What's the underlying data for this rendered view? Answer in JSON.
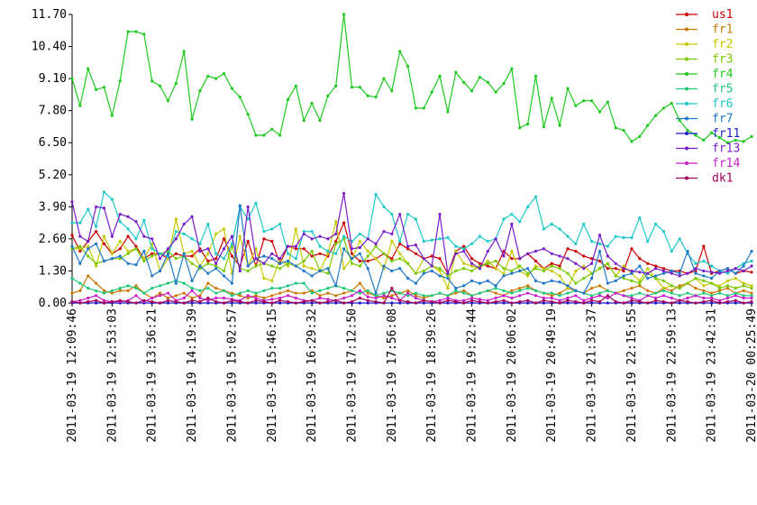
{
  "chart_data": {
    "type": "line",
    "categories": [
      "2011-03-19 12:09:46",
      null,
      null,
      null,
      null,
      "2011-03-19 12:53:03",
      null,
      null,
      null,
      null,
      "2011-03-19 13:36:21",
      null,
      null,
      null,
      null,
      "2011-03-19 14:19:39",
      null,
      null,
      null,
      null,
      "2011-03-19 15:02:57",
      null,
      null,
      null,
      null,
      "2011-03-19 15:46:15",
      null,
      null,
      null,
      null,
      "2011-03-19 16:29:32",
      null,
      null,
      null,
      null,
      "2011-03-19 17:12:50",
      null,
      null,
      null,
      null,
      "2011-03-19 17:56:08",
      null,
      null,
      null,
      null,
      "2011-03-19 18:39:26",
      null,
      null,
      null,
      null,
      "2011-03-19 19:22:44",
      null,
      null,
      null,
      null,
      "2011-03-19 20:06:02",
      null,
      null,
      null,
      null,
      "2011-03-19 20:49:19",
      null,
      null,
      null,
      null,
      "2011-03-19 21:32:37",
      null,
      null,
      null,
      null,
      "2011-03-19 22:15:55",
      null,
      null,
      null,
      null,
      "2011-03-19 22:59:13",
      null,
      null,
      null,
      null,
      "2011-03-19 23:42:31",
      null,
      null,
      null,
      null,
      "2011-03-20 00:25:49"
    ],
    "ylim": [
      0,
      11.7
    ],
    "yticks": [
      {
        "value": 0,
        "label": "0.00"
      },
      {
        "value": 1.3,
        "label": "1.30"
      },
      {
        "value": 2.6,
        "label": "2.60"
      },
      {
        "value": 3.9,
        "label": "3.90"
      },
      {
        "value": 5.2,
        "label": "5.20"
      },
      {
        "value": 6.5,
        "label": "6.50"
      },
      {
        "value": 7.8,
        "label": "7.80"
      },
      {
        "value": 9.1,
        "label": "9.10"
      },
      {
        "value": 10.4,
        "label": "10.40"
      },
      {
        "value": 11.7,
        "label": "11.70"
      }
    ],
    "series": [
      {
        "name": "us1",
        "color": "#cc0000",
        "values": [
          2.75,
          2.1,
          2.5,
          2.9,
          2.4,
          2.0,
          2.2,
          2.7,
          2.3,
          1.8,
          2.0,
          2.0,
          1.8,
          2.0,
          1.9,
          1.9,
          2.2,
          1.7,
          1.8,
          2.6,
          1.9,
          1.5,
          2.5,
          1.5,
          2.6,
          2.5,
          1.6,
          2.3,
          2.2,
          2.2,
          1.9,
          2.0,
          1.9,
          2.5,
          3.25,
          2.0,
          1.7,
          1.7,
          1.8,
          2.0,
          1.8,
          2.4,
          2.2,
          2.0,
          1.8,
          1.9,
          1.8,
          1.2,
          2.1,
          2.3,
          1.8,
          1.6,
          1.5,
          1.4,
          2.1,
          1.8,
          1.8,
          2.0,
          1.7,
          1.4,
          1.6,
          1.5,
          2.2,
          2.1,
          1.9,
          1.8,
          1.7,
          1.4,
          1.4,
          1.3,
          2.2,
          1.8,
          1.6,
          1.5,
          1.4,
          1.3,
          1.3,
          1.2,
          1.3,
          2.3,
          1.2,
          1.3,
          1.4,
          1.2,
          1.3,
          1.25
        ]
      },
      {
        "name": "fr1",
        "color": "#c87800",
        "values": [
          0.4,
          0.5,
          1.1,
          0.8,
          0.5,
          0.4,
          0.5,
          0.5,
          0.7,
          0.4,
          0.2,
          0.4,
          0.2,
          0.3,
          0.4,
          0.2,
          0.3,
          0.8,
          0.6,
          0.5,
          0.4,
          0.3,
          0.2,
          0.3,
          0.2,
          0.3,
          0.4,
          0.5,
          0.4,
          0.4,
          0.5,
          0.3,
          0.4,
          0.3,
          0.4,
          0.5,
          0.8,
          0.4,
          0.3,
          0.2,
          0.3,
          0.4,
          0.5,
          0.3,
          0.2,
          0.3,
          0.4,
          0.3,
          0.4,
          0.5,
          0.3,
          0.4,
          0.5,
          0.4,
          0.3,
          0.5,
          0.6,
          0.7,
          0.5,
          0.4,
          0.3,
          0.4,
          0.6,
          0.5,
          0.4,
          0.6,
          0.7,
          0.5,
          0.4,
          0.5,
          0.6,
          0.7,
          0.5,
          0.4,
          0.6,
          0.5,
          0.7,
          0.8,
          0.6,
          0.5,
          0.4,
          0.5,
          0.6,
          0.4,
          0.5,
          0.4
        ]
      },
      {
        "name": "fr2",
        "color": "#c8c800",
        "values": [
          2.2,
          2.2,
          2.3,
          1.5,
          2.7,
          2.0,
          2.5,
          2.1,
          2.2,
          1.8,
          2.4,
          1.3,
          1.8,
          3.4,
          2.0,
          2.1,
          1.5,
          2.0,
          2.8,
          3.0,
          1.2,
          2.7,
          1.5,
          2.2,
          1.0,
          0.9,
          1.8,
          1.5,
          3.0,
          1.5,
          1.4,
          1.3,
          2.0,
          3.3,
          1.4,
          1.8,
          2.5,
          2.1,
          1.8,
          1.4,
          2.5,
          2.0,
          1.6,
          1.2,
          1.8,
          1.5,
          1.3,
          0.6,
          2.1,
          1.6,
          1.5,
          1.4,
          1.7,
          1.4,
          1.2,
          2.1,
          1.3,
          1.1,
          1.5,
          1.4,
          1.3,
          1.1,
          0.6,
          1.3,
          1.5,
          1.2,
          1.4,
          1.6,
          1.1,
          1.5,
          1.2,
          0.9,
          1.4,
          1.0,
          0.6,
          0.7,
          0.6,
          0.8,
          1.0,
          0.7,
          0.8,
          0.7,
          0.9,
          1.0,
          0.8,
          0.7
        ]
      },
      {
        "name": "fr3",
        "color": "#78c800",
        "values": [
          2.2,
          2.3,
          1.9,
          1.6,
          1.7,
          1.8,
          1.8,
          2.0,
          2.2,
          1.7,
          1.9,
          2.0,
          2.1,
          1.8,
          1.9,
          1.6,
          1.4,
          1.6,
          1.5,
          1.3,
          2.3,
          1.4,
          1.3,
          1.5,
          1.6,
          1.5,
          1.4,
          1.6,
          1.5,
          1.7,
          2.1,
          1.3,
          1.2,
          2.4,
          2.6,
          1.6,
          1.5,
          1.9,
          2.3,
          2.0,
          1.7,
          1.8,
          1.6,
          1.2,
          1.3,
          1.5,
          1.4,
          1.1,
          1.3,
          1.4,
          1.3,
          1.5,
          1.6,
          1.7,
          1.4,
          1.3,
          1.5,
          1.2,
          1.4,
          1.3,
          1.5,
          1.4,
          1.2,
          0.8,
          1.0,
          1.2,
          1.4,
          1.6,
          1.1,
          1.0,
          0.9,
          0.8,
          1.2,
          1.0,
          0.9,
          0.7,
          0.6,
          0.8,
          1.0,
          0.9,
          0.8,
          0.6,
          0.7,
          0.6,
          0.7,
          0.6
        ]
      },
      {
        "name": "fr4",
        "color": "#1ec81e",
        "values": [
          9.1,
          8.0,
          9.5,
          8.65,
          8.75,
          7.6,
          9.0,
          11.0,
          11.0,
          10.9,
          9.0,
          8.8,
          8.2,
          8.9,
          10.2,
          7.45,
          8.6,
          9.2,
          9.1,
          9.3,
          8.7,
          8.35,
          7.65,
          6.8,
          6.8,
          7.05,
          6.8,
          8.25,
          8.8,
          7.4,
          8.1,
          7.4,
          8.4,
          8.8,
          11.7,
          8.75,
          8.75,
          8.4,
          8.35,
          9.1,
          8.6,
          10.2,
          9.6,
          7.9,
          7.9,
          8.55,
          9.2,
          7.75,
          9.35,
          8.95,
          8.6,
          9.15,
          8.95,
          8.55,
          8.9,
          9.5,
          7.1,
          7.25,
          9.2,
          7.15,
          8.3,
          7.2,
          8.7,
          8.0,
          8.2,
          8.2,
          7.75,
          8.15,
          7.1,
          7.0,
          6.55,
          6.75,
          7.2,
          7.6,
          7.9,
          8.1,
          7.4,
          7.0,
          6.8,
          6.6,
          6.9,
          6.7,
          6.5,
          6.6,
          6.55,
          6.75
        ]
      },
      {
        "name": "fr5",
        "color": "#1ec878",
        "values": [
          1.0,
          0.8,
          0.6,
          0.5,
          0.4,
          0.5,
          0.6,
          0.7,
          0.6,
          0.4,
          0.6,
          0.7,
          0.8,
          0.9,
          0.8,
          0.6,
          0.5,
          0.6,
          0.4,
          0.5,
          0.3,
          0.4,
          0.5,
          0.4,
          0.5,
          0.6,
          0.6,
          0.7,
          0.8,
          0.8,
          0.4,
          0.5,
          0.6,
          0.7,
          0.6,
          0.5,
          0.4,
          0.5,
          0.3,
          0.4,
          0.5,
          0.4,
          0.3,
          0.4,
          0.3,
          0.3,
          0.4,
          0.3,
          0.5,
          0.4,
          0.3,
          0.4,
          0.5,
          0.6,
          0.5,
          0.4,
          0.5,
          0.6,
          0.5,
          0.4,
          0.4,
          0.3,
          0.4,
          0.5,
          0.4,
          0.3,
          0.4,
          0.5,
          0.4,
          0.3,
          0.3,
          0.4,
          0.3,
          0.4,
          0.5,
          0.4,
          0.3,
          0.4,
          0.3,
          0.4,
          0.3,
          0.4,
          0.3,
          0.4,
          0.3,
          0.3
        ]
      },
      {
        "name": "fr6",
        "color": "#1ec8c8",
        "values": [
          3.25,
          3.25,
          3.8,
          3.1,
          4.5,
          4.2,
          3.3,
          3.0,
          2.6,
          3.35,
          2.2,
          2.0,
          1.9,
          2.9,
          2.8,
          2.6,
          2.4,
          3.2,
          2.0,
          1.8,
          2.4,
          3.9,
          3.4,
          4.05,
          2.9,
          3.0,
          3.2,
          2.0,
          1.8,
          2.9,
          2.9,
          2.3,
          2.1,
          2.0,
          2.7,
          2.5,
          2.8,
          2.6,
          4.4,
          3.9,
          3.6,
          2.5,
          3.6,
          3.4,
          2.5,
          2.55,
          2.6,
          2.65,
          2.3,
          2.2,
          2.4,
          2.7,
          2.5,
          2.6,
          3.4,
          3.6,
          3.3,
          3.9,
          4.3,
          3.0,
          3.2,
          3.0,
          2.7,
          2.4,
          3.2,
          2.5,
          2.4,
          2.3,
          2.7,
          2.65,
          2.65,
          3.45,
          2.5,
          3.2,
          2.9,
          2.1,
          2.6,
          2.0,
          1.6,
          1.7,
          1.5,
          1.3,
          1.2,
          1.4,
          1.6,
          1.7
        ]
      },
      {
        "name": "fr7",
        "color": "#1e78c8",
        "values": [
          2.3,
          1.6,
          2.2,
          2.4,
          1.7,
          1.8,
          1.9,
          1.6,
          1.55,
          2.1,
          1.1,
          1.3,
          2.0,
          0.8,
          2.0,
          0.9,
          1.5,
          1.2,
          1.4,
          1.1,
          0.8,
          3.95,
          1.5,
          1.8,
          1.9,
          1.8,
          1.6,
          1.7,
          1.5,
          1.3,
          1.1,
          1.3,
          1.4,
          0.7,
          2.2,
          1.8,
          2.0,
          1.4,
          0.4,
          1.5,
          1.3,
          1.4,
          1.0,
          0.8,
          1.2,
          1.3,
          1.1,
          1.0,
          0.6,
          0.7,
          0.9,
          0.8,
          0.9,
          0.7,
          1.1,
          1.2,
          1.3,
          1.4,
          0.9,
          0.8,
          0.9,
          0.85,
          0.7,
          0.5,
          0.4,
          1.0,
          2.1,
          0.8,
          0.9,
          1.1,
          1.2,
          1.5,
          1.0,
          1.1,
          1.2,
          1.3,
          1.2,
          2.1,
          1.2,
          1.1,
          1.0,
          1.3,
          1.4,
          1.2,
          1.5,
          2.1
        ]
      },
      {
        "name": "fr11",
        "color": "#1e1ec8",
        "values": [
          0,
          0,
          0,
          0,
          0,
          0,
          0,
          0,
          0,
          0,
          0,
          0,
          0,
          0,
          0,
          0,
          0,
          0,
          0,
          0,
          0,
          0,
          0,
          0,
          0,
          0,
          0,
          0,
          0,
          0,
          0,
          0,
          0,
          0,
          0,
          0,
          0,
          0,
          0,
          0,
          0,
          0,
          0,
          0,
          0,
          0,
          0,
          0,
          0,
          0,
          0,
          0,
          0,
          0,
          0,
          0,
          0,
          0,
          0,
          0,
          0,
          0,
          0,
          0,
          0,
          0,
          0,
          0,
          0,
          0,
          0,
          0,
          0,
          0,
          0,
          0,
          0,
          0,
          0,
          0,
          0,
          0,
          0,
          0,
          0,
          0
        ]
      },
      {
        "name": "fr13",
        "color": "#781ec8",
        "values": [
          4.1,
          2.7,
          2.5,
          3.9,
          3.85,
          2.7,
          3.6,
          3.5,
          3.3,
          2.7,
          2.6,
          1.8,
          2.2,
          2.6,
          3.2,
          3.5,
          2.1,
          2.2,
          1.6,
          2.2,
          2.7,
          1.3,
          3.9,
          1.8,
          1.6,
          2.0,
          1.8,
          2.3,
          2.3,
          2.8,
          2.6,
          2.7,
          2.6,
          2.8,
          4.45,
          2.2,
          2.25,
          2.6,
          2.4,
          2.9,
          2.8,
          3.6,
          2.3,
          2.35,
          1.8,
          1.5,
          3.6,
          1.2,
          2.0,
          2.1,
          1.6,
          1.4,
          2.1,
          2.6,
          1.9,
          3.2,
          1.8,
          2.0,
          2.1,
          2.2,
          2.0,
          1.9,
          1.8,
          1.6,
          1.4,
          1.6,
          2.75,
          1.9,
          1.6,
          1.4,
          1.3,
          1.25,
          1.2,
          1.4,
          1.3,
          1.2,
          1.1,
          1.2,
          1.4,
          1.3,
          1.25,
          1.2,
          1.3,
          1.4,
          1.3,
          1.5
        ]
      },
      {
        "name": "fr14",
        "color": "#c81ec8",
        "values": [
          0.05,
          0.1,
          0.2,
          0.3,
          0.1,
          0.05,
          0.05,
          0.1,
          0.3,
          0.05,
          0.2,
          0.3,
          0.4,
          0.1,
          0.2,
          0.5,
          0.2,
          0.1,
          0.2,
          0.2,
          0.15,
          0.1,
          0.3,
          0.2,
          0.1,
          0.15,
          0.2,
          0.3,
          0.2,
          0.1,
          0.1,
          0.2,
          0.15,
          0.1,
          0.2,
          0.3,
          0.5,
          0.25,
          0.2,
          0.3,
          0.2,
          0.1,
          0.4,
          0.2,
          0.1,
          0.05,
          0.1,
          0.2,
          0.1,
          0.1,
          0.2,
          0.15,
          0.1,
          0.2,
          0.3,
          0.2,
          0.3,
          0.4,
          0.3,
          0.2,
          0.2,
          0.1,
          0.2,
          0.3,
          0.1,
          0.2,
          0.3,
          0.2,
          0.4,
          0.3,
          0.2,
          0.1,
          0.3,
          0.2,
          0.3,
          0.2,
          0.1,
          0.2,
          0.3,
          0.2,
          0.2,
          0.1,
          0.2,
          0.3,
          0.2,
          0.2
        ]
      },
      {
        "name": "dk1",
        "color": "#a0005a",
        "values": [
          0.05,
          0,
          0.05,
          0.1,
          0,
          0.05,
          0.1,
          0.05,
          0,
          0.1,
          0.05,
          0,
          0.1,
          0.05,
          0,
          0.1,
          0.05,
          0.2,
          0.05,
          0,
          0.1,
          0.05,
          0,
          0.1,
          0.05,
          0,
          0.1,
          0.05,
          0,
          0.05,
          0.1,
          0,
          0.05,
          0.1,
          0,
          0.05,
          0.2,
          0.1,
          0.05,
          0,
          0.6,
          0.1,
          0.05,
          0,
          0.1,
          0.05,
          0,
          0.1,
          0.05,
          0,
          0.1,
          0.05,
          0,
          0.05,
          0.1,
          0,
          0.05,
          0.1,
          0,
          0.1,
          0.05,
          0,
          0.1,
          0.05,
          0,
          0.1,
          0.05,
          0.3,
          0.05,
          0,
          0.1,
          0.05,
          0,
          0.1,
          0.05,
          0,
          0.1,
          0.05,
          0,
          0.05,
          0.1,
          0,
          0.05,
          0.1,
          0,
          0.05
        ]
      }
    ]
  }
}
